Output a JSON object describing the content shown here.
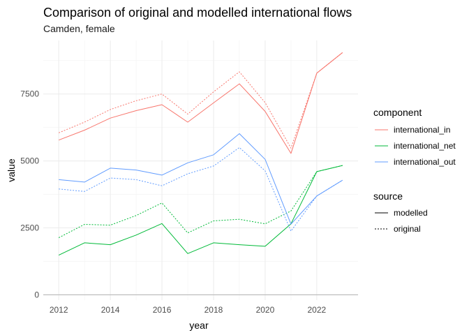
{
  "chart_data": {
    "type": "line",
    "title": "Comparison of original and modelled international flows",
    "subtitle": "Camden, female",
    "xlabel": "year",
    "ylabel": "value",
    "xlim": [
      2011.4,
      2023.6
    ],
    "ylim": [
      -200,
      9500
    ],
    "xticks": [
      2012,
      2014,
      2016,
      2018,
      2020,
      2022
    ],
    "yticks": [
      0,
      2500,
      5000,
      7500
    ],
    "ytick_labels": [
      "0",
      "2500",
      "5000",
      "7500"
    ],
    "x": [
      2012,
      2013,
      2014,
      2015,
      2016,
      2017,
      2018,
      2019,
      2020,
      2021,
      2022,
      2023
    ],
    "grid": true,
    "legend_position": "right",
    "series": [
      {
        "component": "international_in",
        "source": "modelled",
        "color": "#F8766D",
        "dashed": false,
        "values": [
          5780,
          6150,
          6600,
          6880,
          7100,
          6450,
          7170,
          7880,
          6850,
          5280,
          8280,
          9050
        ]
      },
      {
        "component": "international_in",
        "source": "original",
        "color": "#F8766D",
        "dashed": true,
        "values": [
          6050,
          6450,
          6920,
          7250,
          7500,
          6750,
          7580,
          8330,
          7180,
          5480,
          8280,
          9050
        ]
      },
      {
        "component": "international_net",
        "source": "modelled",
        "color": "#00BA38",
        "dashed": false,
        "values": [
          1480,
          1940,
          1870,
          2230,
          2660,
          1540,
          1940,
          1870,
          1810,
          2650,
          4600,
          4830
        ]
      },
      {
        "component": "international_net",
        "source": "original",
        "color": "#00BA38",
        "dashed": true,
        "values": [
          2130,
          2630,
          2600,
          2960,
          3430,
          2310,
          2760,
          2820,
          2650,
          3130,
          4600,
          4830
        ]
      },
      {
        "component": "international_out",
        "source": "modelled",
        "color": "#619CFF",
        "dashed": false,
        "values": [
          4300,
          4210,
          4730,
          4660,
          4470,
          4930,
          5230,
          6020,
          5060,
          2640,
          3690,
          4280
        ]
      },
      {
        "component": "international_out",
        "source": "original",
        "color": "#619CFF",
        "dashed": true,
        "values": [
          3950,
          3860,
          4360,
          4300,
          4070,
          4520,
          4810,
          5500,
          4630,
          2380,
          3690,
          4280
        ]
      }
    ],
    "legend": {
      "component_title": "component",
      "components": [
        {
          "label": "international_in",
          "color": "#F8766D"
        },
        {
          "label": "international_net",
          "color": "#00BA38"
        },
        {
          "label": "international_out",
          "color": "#619CFF"
        }
      ],
      "source_title": "source",
      "sources": [
        {
          "label": "modelled",
          "dashed": false
        },
        {
          "label": "original",
          "dashed": true
        }
      ]
    }
  }
}
